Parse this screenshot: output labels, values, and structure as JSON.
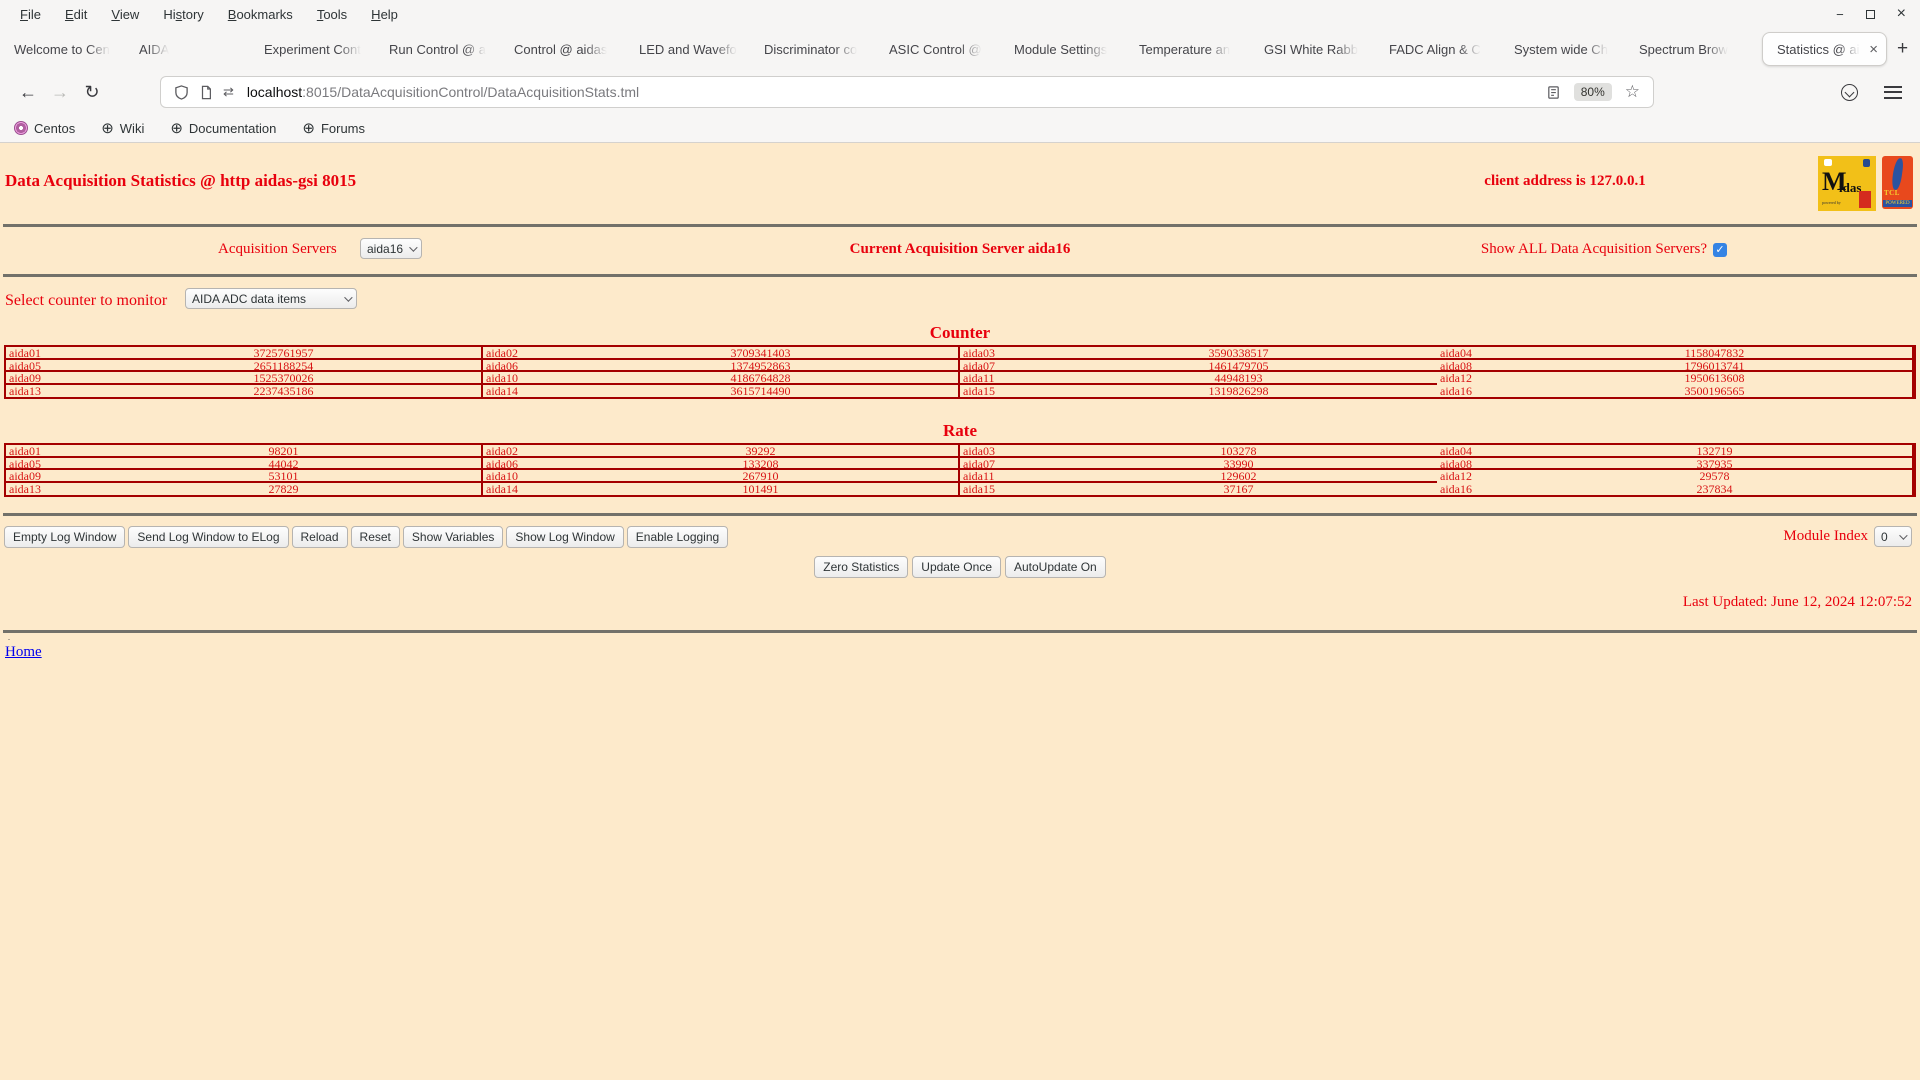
{
  "colors": {
    "page_bg": "#fdeacb",
    "red": "#e8000d",
    "table_border": "#a40000",
    "table_text": "#d81414",
    "link": "#0000ee",
    "checkbox": "#3584e4"
  },
  "browser": {
    "menu": [
      {
        "label": "File",
        "u": 0
      },
      {
        "label": "Edit",
        "u": 0
      },
      {
        "label": "View",
        "u": 0
      },
      {
        "label": "History",
        "u": 2
      },
      {
        "label": "Bookmarks",
        "u": 0
      },
      {
        "label": "Tools",
        "u": 0
      },
      {
        "label": "Help",
        "u": 0
      }
    ],
    "tabs": [
      {
        "label": "Welcome to Cen"
      },
      {
        "label": "AIDA"
      },
      {
        "label": "Experiment Cont"
      },
      {
        "label": "Run Control @ a"
      },
      {
        "label": "Control @ aidas"
      },
      {
        "label": "LED and Wavefo"
      },
      {
        "label": "Discriminator co"
      },
      {
        "label": "ASIC Control @"
      },
      {
        "label": "Module Settings"
      },
      {
        "label": "Temperature an"
      },
      {
        "label": "GSI White Rabb"
      },
      {
        "label": "FADC Align & C"
      },
      {
        "label": "System wide Ch"
      },
      {
        "label": "Spectrum Brow"
      },
      {
        "label": "Statistics @ ai",
        "active": true
      }
    ],
    "icons": {
      "back": "←",
      "forward": "→",
      "reload": "↻",
      "star": "☆",
      "tracker": "⇄",
      "globe": "⊕",
      "close": "×",
      "new_tab": "+",
      "minimize": "−",
      "window_close": "×",
      "check": "✓"
    },
    "url": {
      "host": "localhost",
      "rest": ":8015/DataAcquisitionControl/DataAcquisitionStats.tml"
    },
    "zoom_badge": "80%",
    "bookmarks": [
      {
        "label": "Centos",
        "centos": true
      },
      {
        "label": "Wiki",
        "globe": true
      },
      {
        "label": "Documentation",
        "globe": true
      },
      {
        "label": "Forums",
        "globe": true
      }
    ]
  },
  "page": {
    "title": "Data Acquisition Statistics @ http aidas-gsi 8015",
    "client_address": "client address is 127.0.0.1",
    "logos": {
      "midas_m": "M",
      "midas_idas": "idas",
      "midas_powered": "powered by",
      "tcl": "TCL",
      "tcl_powered": "POWERED"
    },
    "acquisition_servers_label": "Acquisition Servers",
    "acquisition_server_value": "aida16",
    "current_server": "Current Acquisition Server aida16",
    "show_all_label": "Show ALL Data Acquisition Servers?",
    "select_counter_label": "Select counter to monitor",
    "counter_select_value": "AIDA ADC data items",
    "counter_heading": "Counter",
    "rate_heading": "Rate",
    "counter_cells": [
      {
        "name": "aida01",
        "value": "3725761957"
      },
      {
        "name": "aida02",
        "value": "3709341403"
      },
      {
        "name": "aida03",
        "value": "3590338517"
      },
      {
        "name": "aida04",
        "value": "1158047832"
      },
      {
        "name": "aida05",
        "value": "2651188254"
      },
      {
        "name": "aida06",
        "value": "1374952863"
      },
      {
        "name": "aida07",
        "value": "1461479705"
      },
      {
        "name": "aida08",
        "value": "1796013741"
      },
      {
        "name": "aida09",
        "value": "1525370026"
      },
      {
        "name": "aida10",
        "value": "4186764828"
      },
      {
        "name": "aida11",
        "value": "44948193"
      },
      {
        "name": "aida12",
        "value": "1950613608"
      },
      {
        "name": "aida13",
        "value": "2237435186"
      },
      {
        "name": "aida14",
        "value": "3615714490"
      },
      {
        "name": "aida15",
        "value": "1319826298"
      },
      {
        "name": "aida16",
        "value": "3500196565"
      }
    ],
    "rate_cells": [
      {
        "name": "aida01",
        "value": "98201"
      },
      {
        "name": "aida02",
        "value": "39292"
      },
      {
        "name": "aida03",
        "value": "103278"
      },
      {
        "name": "aida04",
        "value": "132719"
      },
      {
        "name": "aida05",
        "value": "44042"
      },
      {
        "name": "aida06",
        "value": "133208"
      },
      {
        "name": "aida07",
        "value": "33990"
      },
      {
        "name": "aida08",
        "value": "337935"
      },
      {
        "name": "aida09",
        "value": "53101"
      },
      {
        "name": "aida10",
        "value": "267910"
      },
      {
        "name": "aida11",
        "value": "129602"
      },
      {
        "name": "aida12",
        "value": "29578"
      },
      {
        "name": "aida13",
        "value": "27829"
      },
      {
        "name": "aida14",
        "value": "101491"
      },
      {
        "name": "aida15",
        "value": "37167"
      },
      {
        "name": "aida16",
        "value": "237834"
      }
    ],
    "log_buttons": [
      "Empty Log Window",
      "Send Log Window to ELog",
      "Reload",
      "Reset",
      "Show Variables",
      "Show Log Window",
      "Enable Logging"
    ],
    "module_index_label": "Module Index",
    "module_index_value": "0",
    "update_buttons": [
      "Zero Statistics",
      "Update Once",
      "AutoUpdate On"
    ],
    "last_updated": "Last Updated: June 12, 2024 12:07:52",
    "footer_dot": ".",
    "home_link": "Home"
  }
}
